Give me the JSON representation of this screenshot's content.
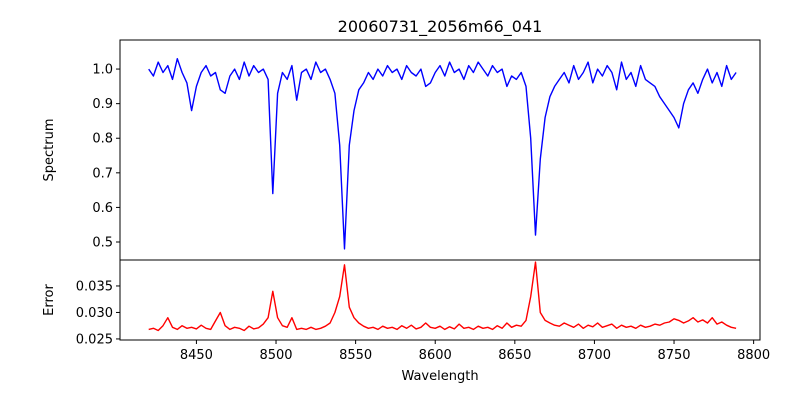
{
  "chart_data": [
    {
      "type": "line",
      "title": "20060731_2056m66_041",
      "xlabel": "",
      "ylabel": "Spectrum",
      "xlim": [
        8402,
        8804
      ],
      "ylim": [
        0.448,
        1.084
      ],
      "yticks": [
        0.5,
        0.6,
        0.7,
        0.8,
        0.9,
        1.0
      ],
      "ytick_labels": [
        "0.5",
        "0.6",
        "0.7",
        "0.8",
        "0.9",
        "1.0"
      ],
      "color": "#0000ff",
      "series": [
        {
          "name": "Spectrum",
          "values": [
            1.0,
            0.98,
            1.02,
            0.99,
            1.01,
            0.97,
            1.03,
            0.99,
            0.96,
            0.88,
            0.95,
            0.99,
            1.01,
            0.98,
            0.99,
            0.94,
            0.93,
            0.98,
            1.0,
            0.97,
            1.02,
            0.98,
            1.01,
            0.99,
            1.0,
            0.97,
            0.64,
            0.93,
            0.99,
            0.97,
            1.01,
            0.91,
            0.99,
            1.0,
            0.97,
            1.02,
            0.99,
            1.0,
            0.97,
            0.93,
            0.78,
            0.48,
            0.78,
            0.88,
            0.94,
            0.96,
            0.99,
            0.97,
            1.0,
            0.98,
            1.01,
            0.99,
            1.0,
            0.97,
            1.01,
            0.99,
            0.98,
            1.0,
            0.95,
            0.96,
            0.99,
            1.01,
            0.98,
            1.02,
            0.99,
            1.0,
            0.97,
            1.01,
            0.99,
            1.02,
            1.0,
            0.98,
            1.01,
            0.99,
            1.0,
            0.95,
            0.98,
            0.97,
            0.99,
            0.95,
            0.8,
            0.52,
            0.74,
            0.86,
            0.92,
            0.95,
            0.97,
            0.99,
            0.96,
            1.01,
            0.97,
            0.99,
            1.02,
            0.96,
            1.0,
            0.98,
            1.01,
            0.99,
            0.94,
            1.02,
            0.97,
            0.99,
            0.95,
            1.01,
            0.97,
            0.96,
            0.95,
            0.92,
            0.9,
            0.88,
            0.86,
            0.83,
            0.9,
            0.94,
            0.96,
            0.93,
            0.97,
            1.0,
            0.96,
            0.99,
            0.95,
            1.01,
            0.97,
            0.99
          ]
        }
      ]
    },
    {
      "type": "line",
      "xlabel": "Wavelength",
      "ylabel": "Error",
      "xlim": [
        8402,
        8804
      ],
      "ylim": [
        0.0248,
        0.0399
      ],
      "xticks": [
        8450,
        8500,
        8550,
        8600,
        8650,
        8700,
        8750,
        8800
      ],
      "xtick_labels": [
        "8450",
        "8500",
        "8550",
        "8600",
        "8650",
        "8700",
        "8750",
        "8800"
      ],
      "yticks": [
        0.025,
        0.03,
        0.035
      ],
      "ytick_labels": [
        "0.025",
        "0.030",
        "0.035"
      ],
      "color": "#ff0000",
      "series": [
        {
          "name": "Error",
          "values": [
            0.0268,
            0.027,
            0.0266,
            0.0275,
            0.029,
            0.0272,
            0.0268,
            0.0275,
            0.027,
            0.0272,
            0.0269,
            0.0276,
            0.027,
            0.0268,
            0.0284,
            0.03,
            0.0275,
            0.0268,
            0.0272,
            0.027,
            0.0266,
            0.0274,
            0.0269,
            0.0271,
            0.0278,
            0.029,
            0.034,
            0.029,
            0.0275,
            0.0272,
            0.029,
            0.0268,
            0.027,
            0.0268,
            0.0272,
            0.0268,
            0.027,
            0.0274,
            0.028,
            0.03,
            0.033,
            0.039,
            0.031,
            0.029,
            0.028,
            0.0274,
            0.027,
            0.0272,
            0.0268,
            0.0274,
            0.027,
            0.0272,
            0.0268,
            0.0275,
            0.027,
            0.0276,
            0.0269,
            0.0272,
            0.028,
            0.0272,
            0.027,
            0.0274,
            0.0268,
            0.0273,
            0.0269,
            0.0278,
            0.027,
            0.0272,
            0.0268,
            0.0274,
            0.027,
            0.0272,
            0.0268,
            0.0275,
            0.027,
            0.028,
            0.0272,
            0.0276,
            0.0274,
            0.0285,
            0.033,
            0.0395,
            0.03,
            0.0285,
            0.028,
            0.0276,
            0.0274,
            0.028,
            0.0276,
            0.0272,
            0.0278,
            0.027,
            0.0276,
            0.0273,
            0.028,
            0.0272,
            0.0275,
            0.0278,
            0.027,
            0.0276,
            0.0272,
            0.0274,
            0.027,
            0.0276,
            0.0272,
            0.0274,
            0.0278,
            0.0276,
            0.028,
            0.0282,
            0.0288,
            0.0285,
            0.028,
            0.0284,
            0.029,
            0.0282,
            0.0286,
            0.028,
            0.029,
            0.0278,
            0.0282,
            0.0276,
            0.0272,
            0.027
          ]
        }
      ]
    }
  ],
  "x": [
    8420,
    8423,
    8426,
    8429,
    8432,
    8435,
    8438,
    8441,
    8444,
    8447,
    8450,
    8453,
    8456,
    8459,
    8462,
    8465,
    8468,
    8471,
    8474,
    8477,
    8480,
    8483,
    8486,
    8489,
    8492,
    8495,
    8498,
    8501,
    8504,
    8507,
    8510,
    8513,
    8516,
    8519,
    8522,
    8525,
    8528,
    8531,
    8534,
    8537,
    8540,
    8543,
    8546,
    8549,
    8552,
    8555,
    8558,
    8561,
    8564,
    8567,
    8570,
    8573,
    8576,
    8579,
    8582,
    8585,
    8588,
    8591,
    8594,
    8597,
    8600,
    8603,
    8606,
    8609,
    8612,
    8615,
    8618,
    8621,
    8624,
    8627,
    8630,
    8633,
    8636,
    8639,
    8642,
    8645,
    8648,
    8651,
    8654,
    8657,
    8660,
    8663,
    8666,
    8669,
    8672,
    8675,
    8678,
    8681,
    8684,
    8687,
    8690,
    8693,
    8696,
    8699,
    8702,
    8705,
    8708,
    8711,
    8714,
    8717,
    8720,
    8723,
    8726,
    8729,
    8732,
    8735,
    8738,
    8741,
    8744,
    8747,
    8750,
    8753,
    8756,
    8759,
    8762,
    8765,
    8768,
    8771,
    8774,
    8777,
    8780,
    8783,
    8786,
    8789
  ]
}
